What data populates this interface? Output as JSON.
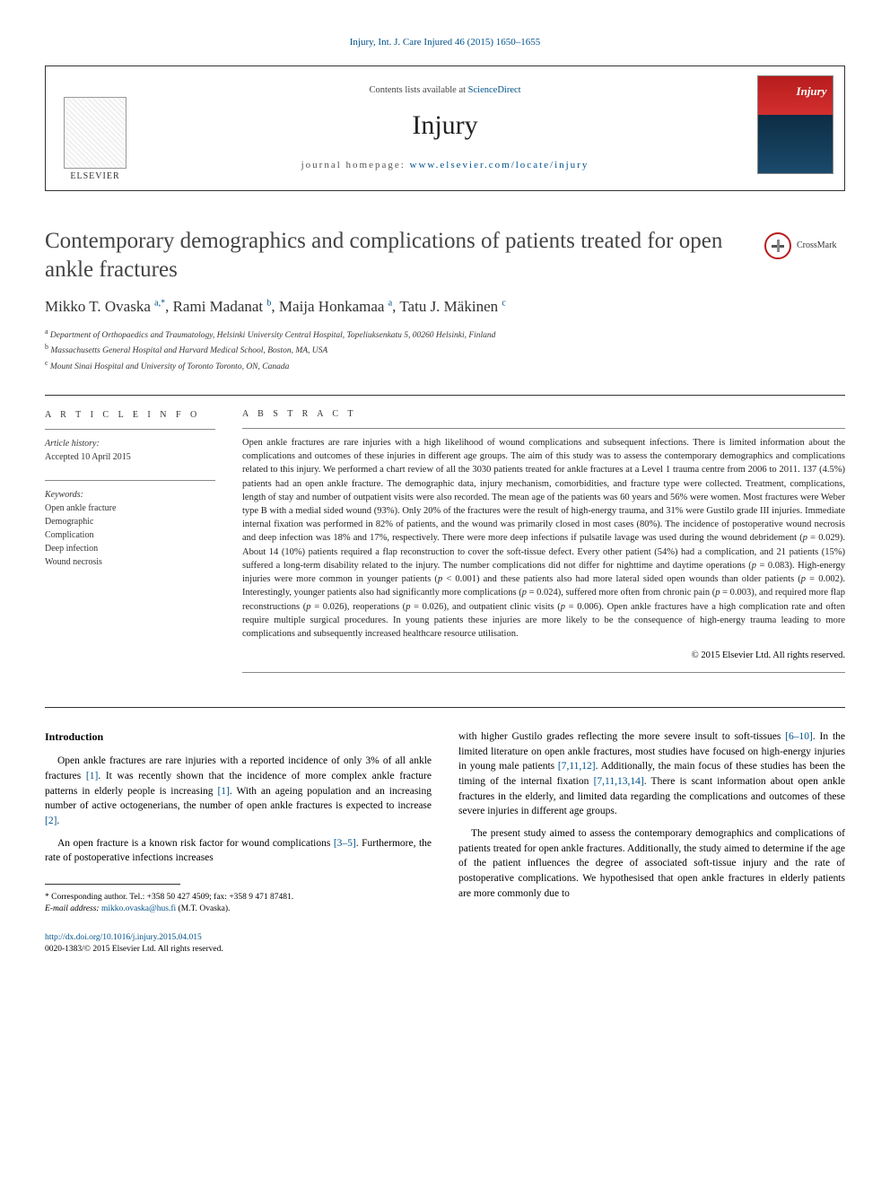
{
  "header_citation": "Injury, Int. J. Care Injured 46 (2015) 1650–1655",
  "box": {
    "contents_prefix": "Contents lists available at ",
    "contents_link": "ScienceDirect",
    "journal_name": "Injury",
    "homepage_prefix": "journal homepage: ",
    "homepage_link": "www.elsevier.com/locate/injury",
    "elsevier": "ELSEVIER"
  },
  "crossmark": "CrossMark",
  "title": "Contemporary demographics and complications of patients treated for open ankle fractures",
  "authors_html": "Mikko T. Ovaska <sup>a,*</sup>, Rami Madanat <sup>b</sup>, Maija Honkamaa <sup>a</sup>, Tatu J. Mäkinen <sup>c</sup>",
  "affiliations": {
    "a": "Department of Orthopaedics and Traumatology, Helsinki University Central Hospital, Topeliuksenkatu 5, 00260 Helsinki, Finland",
    "b": "Massachusetts General Hospital and Harvard Medical School, Boston, MA, USA",
    "c": "Mount Sinai Hospital and University of Toronto Toronto, ON, Canada"
  },
  "info_label": "A R T I C L E   I N F O",
  "abstract_label": "A B S T R A C T",
  "history": {
    "label": "Article history:",
    "accepted": "Accepted 10 April 2015"
  },
  "keywords": {
    "label": "Keywords:",
    "items": [
      "Open ankle fracture",
      "Demographic",
      "Complication",
      "Deep infection",
      "Wound necrosis"
    ]
  },
  "abstract": "Open ankle fractures are rare injuries with a high likelihood of wound complications and subsequent infections. There is limited information about the complications and outcomes of these injuries in different age groups. The aim of this study was to assess the contemporary demographics and complications related to this injury. We performed a chart review of all the 3030 patients treated for ankle fractures at a Level 1 trauma centre from 2006 to 2011. 137 (4.5%) patients had an open ankle fracture. The demographic data, injury mechanism, comorbidities, and fracture type were collected. Treatment, complications, length of stay and number of outpatient visits were also recorded. The mean age of the patients was 60 years and 56% were women. Most fractures were Weber type B with a medial sided wound (93%). Only 20% of the fractures were the result of high-energy trauma, and 31% were Gustilo grade III injuries. Immediate internal fixation was performed in 82% of patients, and the wound was primarily closed in most cases (80%). The incidence of postoperative wound necrosis and deep infection was 18% and 17%, respectively. There were more deep infections if pulsatile lavage was used during the wound debridement (p = 0.029). About 14 (10%) patients required a flap reconstruction to cover the soft-tissue defect. Every other patient (54%) had a complication, and 21 patients (15%) suffered a long-term disability related to the injury. The number complications did not differ for nighttime and daytime operations (p = 0.083). High-energy injuries were more common in younger patients (p < 0.001) and these patients also had more lateral sided open wounds than older patients (p = 0.002). Interestingly, younger patients also had significantly more complications (p = 0.024), suffered more often from chronic pain (p = 0.003), and required more flap reconstructions (p = 0.026), reoperations (p = 0.026), and outpatient clinic visits (p = 0.006). Open ankle fractures have a high complication rate and often require multiple surgical procedures. In young patients these injuries are more likely to be the consequence of high-energy trauma leading to more complications and subsequently increased healthcare resource utilisation.",
  "copyright": "© 2015 Elsevier Ltd. All rights reserved.",
  "intro_heading": "Introduction",
  "intro_p1": "Open ankle fractures are rare injuries with a reported incidence of only 3% of all ankle fractures [1]. It was recently shown that the incidence of more complex ankle fracture patterns in elderly people is increasing [1]. With an ageing population and an increasing number of active octogenerians, the number of open ankle fractures is expected to increase [2].",
  "intro_p2": "An open fracture is a known risk factor for wound complications [3–5]. Furthermore, the rate of postoperative infections increases",
  "col2_p1": "with higher Gustilo grades reflecting the more severe insult to soft-tissues [6–10]. In the limited literature on open ankle fractures, most studies have focused on high-energy injuries in young male patients [7,11,12]. Additionally, the main focus of these studies has been the timing of the internal fixation [7,11,13,14]. There is scant information about open ankle fractures in the elderly, and limited data regarding the complications and outcomes of these severe injuries in different age groups.",
  "col2_p2": "The present study aimed to assess the contemporary demographics and complications of patients treated for open ankle fractures. Additionally, the study aimed to determine if the age of the patient influences the degree of associated soft-tissue injury and the rate of postoperative complications. We hypothesised that open ankle fractures in elderly patients are more commonly due to",
  "footnote": {
    "corr": "* Corresponding author. Tel.: +358 50 427 4509; fax: +358 9 471 87481.",
    "email_label": "E-mail address: ",
    "email": "mikko.ovaska@hus.fi",
    "email_suffix": " (M.T. Ovaska)."
  },
  "doi": {
    "url": "http://dx.doi.org/10.1016/j.injury.2015.04.015",
    "issn": "0020-1383/© 2015 Elsevier Ltd. All rights reserved."
  },
  "colors": {
    "link": "#005189",
    "text": "#222"
  }
}
